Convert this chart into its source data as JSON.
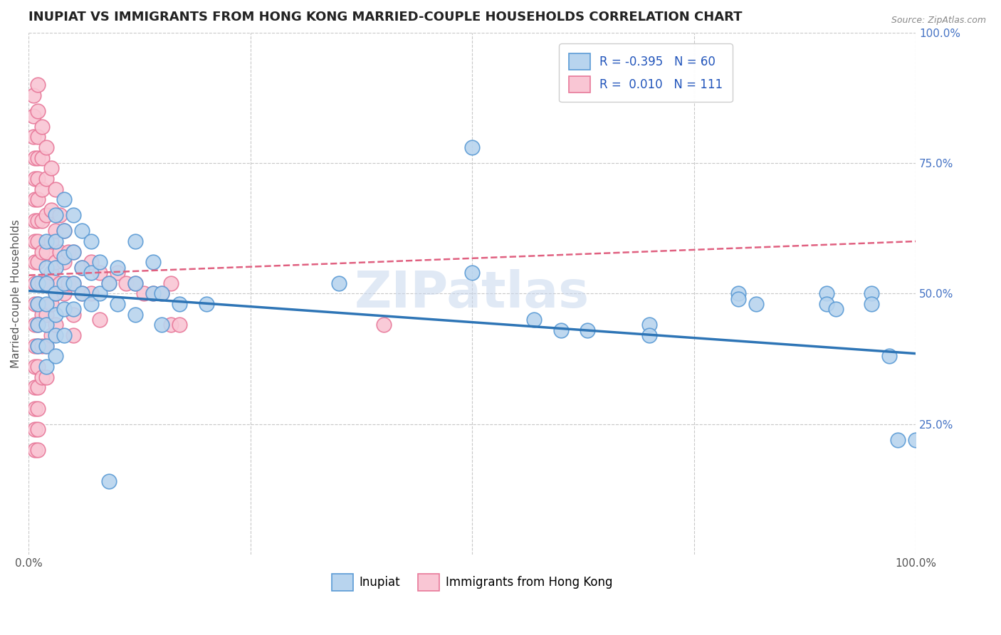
{
  "title": "INUPIAT VS IMMIGRANTS FROM HONG KONG MARRIED-COUPLE HOUSEHOLDS CORRELATION CHART",
  "source": "Source: ZipAtlas.com",
  "ylabel": "Married-couple Households",
  "xlabel": "",
  "xlim": [
    0.0,
    1.0
  ],
  "ylim": [
    0.0,
    1.0
  ],
  "xtick_labels": [
    "0.0%",
    "",
    "",
    "",
    "100.0%"
  ],
  "ytick_labels_right": [
    "100.0%",
    "75.0%",
    "50.0%",
    "25.0%"
  ],
  "legend_title_inupiat": "Inupiat",
  "legend_title_hk": "Immigrants from Hong Kong",
  "inupiat_color": "#b8d4ee",
  "inupiat_edge": "#5b9bd5",
  "hk_color": "#f9c6d4",
  "hk_edge": "#e8799a",
  "inupiat_line_color": "#2e75b6",
  "hk_line_color": "#e06080",
  "watermark": "ZIPatlas",
  "background_color": "#ffffff",
  "grid_color": "#c8c8c8",
  "inupiat_points": [
    [
      0.01,
      0.52
    ],
    [
      0.01,
      0.48
    ],
    [
      0.01,
      0.44
    ],
    [
      0.01,
      0.4
    ],
    [
      0.02,
      0.6
    ],
    [
      0.02,
      0.55
    ],
    [
      0.02,
      0.52
    ],
    [
      0.02,
      0.48
    ],
    [
      0.02,
      0.44
    ],
    [
      0.02,
      0.4
    ],
    [
      0.02,
      0.36
    ],
    [
      0.03,
      0.65
    ],
    [
      0.03,
      0.6
    ],
    [
      0.03,
      0.55
    ],
    [
      0.03,
      0.5
    ],
    [
      0.03,
      0.46
    ],
    [
      0.03,
      0.42
    ],
    [
      0.03,
      0.38
    ],
    [
      0.04,
      0.68
    ],
    [
      0.04,
      0.62
    ],
    [
      0.04,
      0.57
    ],
    [
      0.04,
      0.52
    ],
    [
      0.04,
      0.47
    ],
    [
      0.04,
      0.42
    ],
    [
      0.05,
      0.65
    ],
    [
      0.05,
      0.58
    ],
    [
      0.05,
      0.52
    ],
    [
      0.05,
      0.47
    ],
    [
      0.06,
      0.62
    ],
    [
      0.06,
      0.55
    ],
    [
      0.06,
      0.5
    ],
    [
      0.07,
      0.6
    ],
    [
      0.07,
      0.54
    ],
    [
      0.07,
      0.48
    ],
    [
      0.08,
      0.56
    ],
    [
      0.08,
      0.5
    ],
    [
      0.09,
      0.52
    ],
    [
      0.09,
      0.14
    ],
    [
      0.1,
      0.55
    ],
    [
      0.1,
      0.48
    ],
    [
      0.12,
      0.6
    ],
    [
      0.12,
      0.52
    ],
    [
      0.12,
      0.46
    ],
    [
      0.14,
      0.56
    ],
    [
      0.14,
      0.5
    ],
    [
      0.15,
      0.5
    ],
    [
      0.15,
      0.44
    ],
    [
      0.17,
      0.48
    ],
    [
      0.2,
      0.48
    ],
    [
      0.35,
      0.52
    ],
    [
      0.5,
      0.78
    ],
    [
      0.5,
      0.54
    ],
    [
      0.57,
      0.45
    ],
    [
      0.6,
      0.43
    ],
    [
      0.63,
      0.43
    ],
    [
      0.7,
      0.44
    ],
    [
      0.7,
      0.42
    ],
    [
      0.8,
      0.5
    ],
    [
      0.8,
      0.49
    ],
    [
      0.82,
      0.48
    ],
    [
      0.9,
      0.5
    ],
    [
      0.9,
      0.48
    ],
    [
      0.91,
      0.47
    ],
    [
      0.95,
      0.5
    ],
    [
      0.95,
      0.48
    ],
    [
      0.97,
      0.38
    ],
    [
      0.98,
      0.22
    ],
    [
      1.0,
      0.22
    ]
  ],
  "hk_points": [
    [
      0.005,
      0.88
    ],
    [
      0.005,
      0.84
    ],
    [
      0.005,
      0.8
    ],
    [
      0.007,
      0.76
    ],
    [
      0.007,
      0.72
    ],
    [
      0.007,
      0.68
    ],
    [
      0.007,
      0.64
    ],
    [
      0.007,
      0.6
    ],
    [
      0.007,
      0.56
    ],
    [
      0.007,
      0.52
    ],
    [
      0.007,
      0.48
    ],
    [
      0.007,
      0.44
    ],
    [
      0.007,
      0.4
    ],
    [
      0.007,
      0.36
    ],
    [
      0.007,
      0.32
    ],
    [
      0.007,
      0.28
    ],
    [
      0.007,
      0.24
    ],
    [
      0.007,
      0.2
    ],
    [
      0.01,
      0.9
    ],
    [
      0.01,
      0.85
    ],
    [
      0.01,
      0.8
    ],
    [
      0.01,
      0.76
    ],
    [
      0.01,
      0.72
    ],
    [
      0.01,
      0.68
    ],
    [
      0.01,
      0.64
    ],
    [
      0.01,
      0.6
    ],
    [
      0.01,
      0.56
    ],
    [
      0.01,
      0.52
    ],
    [
      0.01,
      0.48
    ],
    [
      0.01,
      0.44
    ],
    [
      0.01,
      0.4
    ],
    [
      0.01,
      0.36
    ],
    [
      0.01,
      0.32
    ],
    [
      0.01,
      0.28
    ],
    [
      0.01,
      0.24
    ],
    [
      0.01,
      0.2
    ],
    [
      0.015,
      0.82
    ],
    [
      0.015,
      0.76
    ],
    [
      0.015,
      0.7
    ],
    [
      0.015,
      0.64
    ],
    [
      0.015,
      0.58
    ],
    [
      0.015,
      0.52
    ],
    [
      0.015,
      0.46
    ],
    [
      0.015,
      0.4
    ],
    [
      0.015,
      0.34
    ],
    [
      0.02,
      0.78
    ],
    [
      0.02,
      0.72
    ],
    [
      0.02,
      0.65
    ],
    [
      0.02,
      0.58
    ],
    [
      0.02,
      0.52
    ],
    [
      0.02,
      0.46
    ],
    [
      0.02,
      0.4
    ],
    [
      0.02,
      0.34
    ],
    [
      0.025,
      0.74
    ],
    [
      0.025,
      0.66
    ],
    [
      0.025,
      0.6
    ],
    [
      0.025,
      0.54
    ],
    [
      0.025,
      0.48
    ],
    [
      0.025,
      0.42
    ],
    [
      0.03,
      0.7
    ],
    [
      0.03,
      0.62
    ],
    [
      0.03,
      0.56
    ],
    [
      0.03,
      0.5
    ],
    [
      0.03,
      0.44
    ],
    [
      0.035,
      0.65
    ],
    [
      0.035,
      0.58
    ],
    [
      0.035,
      0.52
    ],
    [
      0.04,
      0.62
    ],
    [
      0.04,
      0.56
    ],
    [
      0.04,
      0.5
    ],
    [
      0.045,
      0.58
    ],
    [
      0.045,
      0.52
    ],
    [
      0.05,
      0.58
    ],
    [
      0.05,
      0.52
    ],
    [
      0.05,
      0.46
    ],
    [
      0.06,
      0.55
    ],
    [
      0.06,
      0.5
    ],
    [
      0.07,
      0.56
    ],
    [
      0.07,
      0.5
    ],
    [
      0.08,
      0.54
    ],
    [
      0.09,
      0.52
    ],
    [
      0.1,
      0.54
    ],
    [
      0.11,
      0.52
    ],
    [
      0.12,
      0.52
    ],
    [
      0.13,
      0.5
    ],
    [
      0.14,
      0.5
    ],
    [
      0.15,
      0.5
    ],
    [
      0.16,
      0.44
    ],
    [
      0.17,
      0.44
    ],
    [
      0.16,
      0.52
    ],
    [
      0.05,
      0.42
    ],
    [
      0.08,
      0.45
    ],
    [
      0.4,
      0.44
    ]
  ],
  "inupiat_R": -0.395,
  "hk_R": 0.01,
  "title_fontsize": 13,
  "axis_label_fontsize": 11,
  "tick_fontsize": 11,
  "legend_fontsize": 12
}
